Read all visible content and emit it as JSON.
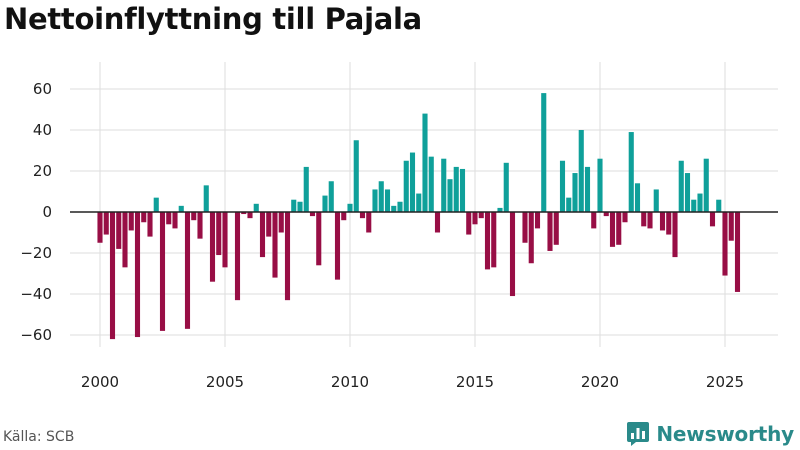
{
  "title": "Nettoinflyttning till Pajala",
  "source": "Källa: SCB",
  "brand": {
    "name": "Newsworthy",
    "icon": "newsworthy-chart-icon"
  },
  "colors": {
    "positive": "#0fa09a",
    "negative": "#980e45",
    "grid": "#dddddd",
    "zero_line": "#222222",
    "brand": "#2a8a8a"
  },
  "chart_data": {
    "type": "bar",
    "title": "Nettoinflyttning till Pajala",
    "xlabel": "",
    "ylabel": "",
    "frequency": "quarterly",
    "start": "2000-Q1",
    "ylim": [
      -70,
      65
    ],
    "yticks": [
      -60,
      -40,
      -20,
      0,
      20,
      40,
      60
    ],
    "ytick_labels": [
      "−60",
      "−40",
      "−20",
      "0",
      "20",
      "40",
      "60"
    ],
    "xticks": [
      2000,
      2005,
      2010,
      2015,
      2020,
      2025
    ],
    "xtick_labels": [
      "2000",
      "2005",
      "2010",
      "2015",
      "2020",
      "2025"
    ],
    "xlim": [
      1999.3,
      2026.9
    ],
    "values": [
      -15,
      -11,
      -62,
      -18,
      -27,
      -9,
      -61,
      -5,
      -12,
      7,
      -58,
      -6,
      -8,
      3,
      -57,
      -4,
      -13,
      13,
      -34,
      -21,
      -27,
      0,
      -43,
      -1,
      -3,
      4,
      -22,
      -12,
      -32,
      -10,
      -43,
      6,
      5,
      22,
      -2,
      -26,
      8,
      15,
      -33,
      -4,
      4,
      35,
      -3,
      -10,
      11,
      15,
      11,
      3,
      5,
      25,
      29,
      9,
      48,
      27,
      -10,
      26,
      16,
      22,
      21,
      -11,
      -6,
      -3,
      -28,
      -27,
      2,
      24,
      -41,
      0,
      -15,
      -25,
      -8,
      58,
      -19,
      -16,
      25,
      7,
      19,
      40,
      22,
      -8,
      26,
      -2,
      -17,
      -16,
      -5,
      39,
      14,
      -7,
      -8,
      11,
      -9,
      -11,
      -22,
      25,
      19,
      6,
      9,
      26,
      -7,
      6,
      -31,
      -14,
      -39
    ]
  }
}
